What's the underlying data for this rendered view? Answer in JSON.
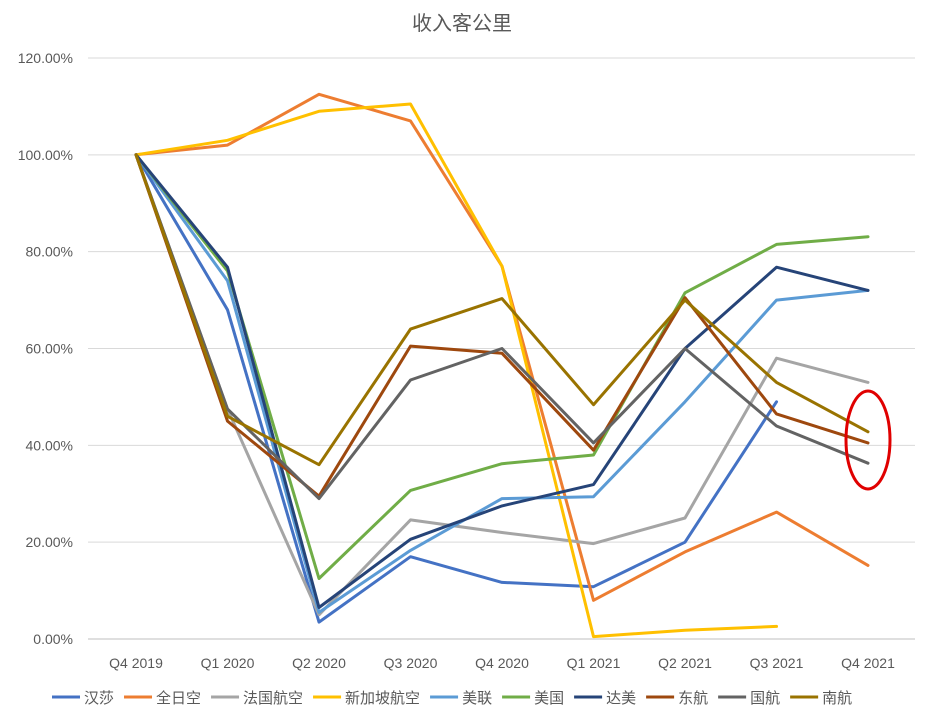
{
  "chart_data": {
    "type": "line",
    "title": "收入客公里",
    "xlabel": "",
    "ylabel": "",
    "ylim": [
      0,
      1.2
    ],
    "y_ticks": [
      "0.00%",
      "20.00%",
      "40.00%",
      "60.00%",
      "80.00%",
      "100.00%",
      "120.00%"
    ],
    "grid": "horizontal",
    "legend_position": "bottom",
    "categories": [
      "Q4 2019",
      "Q1 2020",
      "Q2 2020",
      "Q3 2020",
      "Q4 2020",
      "Q1 2021",
      "Q2 2021",
      "Q3 2021",
      "Q4 2021"
    ],
    "series": [
      {
        "name": "汉莎",
        "color": "#4472C4",
        "values": [
          1.0,
          0.68,
          0.035,
          0.17,
          0.117,
          0.108,
          0.2,
          0.49,
          null
        ]
      },
      {
        "name": "全日空",
        "color": "#ED7D31",
        "values": [
          1.0,
          1.02,
          1.125,
          1.07,
          0.77,
          0.08,
          0.18,
          0.262,
          0.152
        ]
      },
      {
        "name": "法国航空",
        "color": "#A5A5A5",
        "values": [
          1.0,
          0.475,
          0.05,
          0.246,
          0.22,
          0.197,
          0.25,
          0.58,
          0.53
        ]
      },
      {
        "name": "新加坡航空",
        "color": "#FFC000",
        "values": [
          1.0,
          1.03,
          1.09,
          1.105,
          0.77,
          0.005,
          0.018,
          0.026,
          null
        ]
      },
      {
        "name": "美联",
        "color": "#5B9BD5",
        "values": [
          1.0,
          0.74,
          0.055,
          0.183,
          0.29,
          0.294,
          0.49,
          0.7,
          0.72
        ]
      },
      {
        "name": "美国",
        "color": "#70AD47",
        "values": [
          1.0,
          0.76,
          0.125,
          0.307,
          0.362,
          0.38,
          0.715,
          0.815,
          0.831
        ]
      },
      {
        "name": "达美",
        "color": "#264478",
        "values": [
          1.0,
          0.768,
          0.065,
          0.206,
          0.275,
          0.319,
          0.6,
          0.768,
          0.72
        ]
      },
      {
        "name": "东航",
        "color": "#9E480E",
        "values": [
          1.0,
          0.45,
          0.295,
          0.605,
          0.59,
          0.39,
          0.705,
          0.465,
          0.405
        ]
      },
      {
        "name": "国航",
        "color": "#636363",
        "values": [
          1.0,
          0.475,
          0.29,
          0.535,
          0.6,
          0.405,
          0.6,
          0.44,
          0.363
        ]
      },
      {
        "name": "南航",
        "color": "#997300",
        "values": [
          1.0,
          0.46,
          0.36,
          0.64,
          0.703,
          0.484,
          0.7,
          0.53,
          0.428
        ]
      }
    ],
    "highlight_color": "#E00000"
  }
}
